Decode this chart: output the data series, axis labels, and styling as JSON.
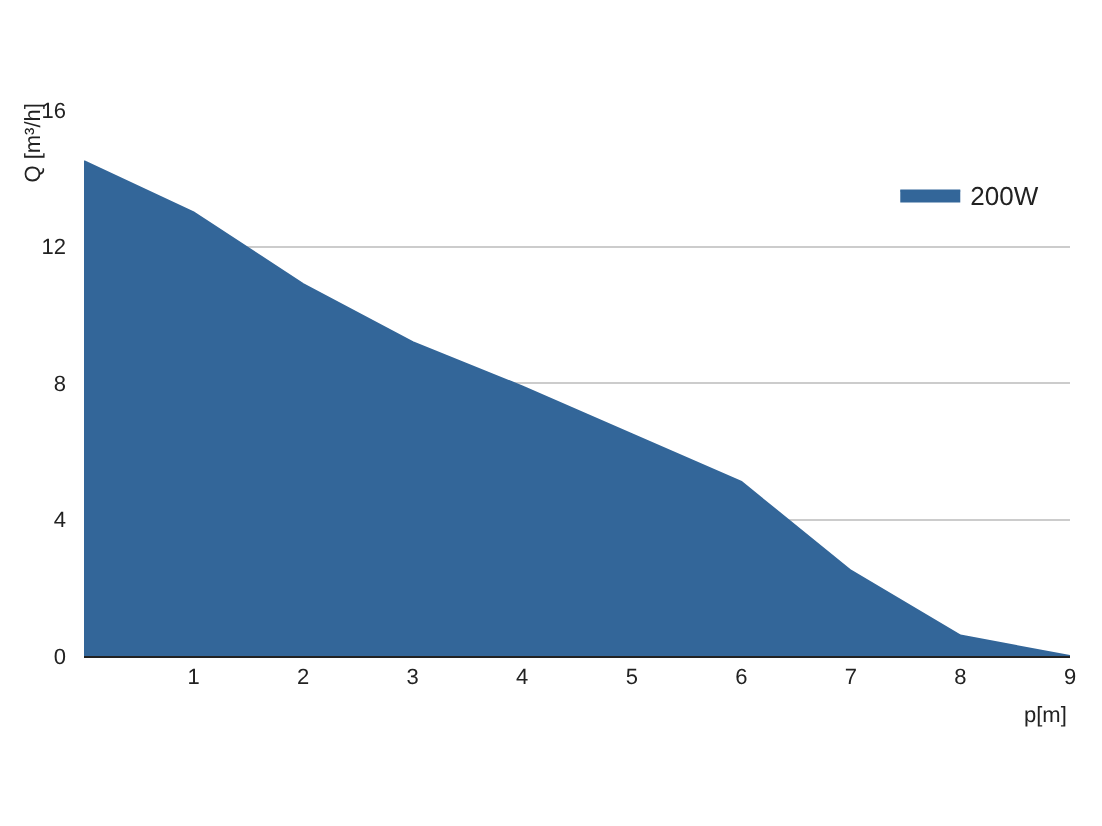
{
  "chart_data": {
    "type": "area",
    "xlabel": "p[m]",
    "ylabel": "Q [m³/h]",
    "x": [
      0,
      1,
      2,
      3,
      4,
      5,
      6,
      7,
      8,
      9
    ],
    "series": [
      {
        "name": "200W",
        "color": "#336699",
        "values": [
          14.5,
          13.0,
          10.9,
          9.2,
          7.9,
          6.5,
          5.1,
          2.5,
          0.6,
          0
        ]
      }
    ],
    "xlim": [
      0,
      9
    ],
    "xticks": [
      1,
      2,
      3,
      4,
      5,
      6,
      7,
      8,
      9
    ],
    "ylim": [
      0,
      16
    ],
    "yticks": [
      0,
      4,
      8,
      12,
      16
    ],
    "grid": "y",
    "legend": "top right"
  }
}
